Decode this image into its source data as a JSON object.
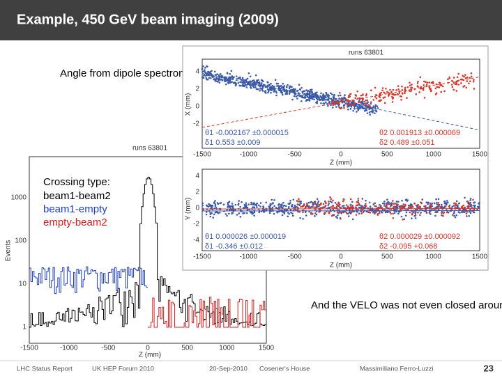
{
  "header": {
    "title": "Example, 450 GeV beam imaging (2009)"
  },
  "annotations": {
    "dipole": "Angle from dipole spectrometer bump",
    "crossing_title": "Crossing type:",
    "crossing_items": [
      "beam1-beam2",
      "beam1-empty",
      "empty-beam2"
    ],
    "velo": "And the VELO was not even closed around the beams…"
  },
  "vertex_plot": {
    "title": "runs 63801",
    "x_panel": {
      "ylabel": "X (mm)",
      "yticks": [
        "4",
        "2",
        "0",
        "-2"
      ],
      "fit1": [
        "θ1 -0.002167 ±0.000015",
        "δ1 0.553 ±0.009"
      ],
      "fit2": [
        "θ2 0.001913 ±0.000069",
        "δ2 0.489 ±0.051"
      ]
    },
    "y_panel": {
      "ylabel": "Y (mm)",
      "yticks": [
        "4",
        "2",
        "0",
        "-2",
        "-4"
      ],
      "fit1": [
        "θ1 0.000026 ±0.000019",
        "δ1 -0.346 ±0.012"
      ],
      "fit2": [
        "θ2 0.000029 ±0.000092",
        "δ2 -0.095 +0.068"
      ]
    },
    "xticks": [
      "-1500",
      "-1000",
      "-500",
      "0",
      "500",
      "1000",
      "1500"
    ],
    "xlabel": "Z (mm)"
  },
  "histogram": {
    "title": "runs 63801",
    "ylabel": "Events",
    "yticks": [
      "1000",
      "100",
      "10",
      "1"
    ],
    "xticks": [
      "-1500",
      "-1000",
      "-500",
      "0",
      "500",
      "1000",
      "1500"
    ],
    "xlabel": "Z (mm)"
  },
  "footer": [
    "LHC Status Report",
    "UK HEP Forum 2010",
    "20-Sep-2010",
    "Cosener's House",
    "Massimiliano Ferro-Luzzi",
    "23"
  ]
}
